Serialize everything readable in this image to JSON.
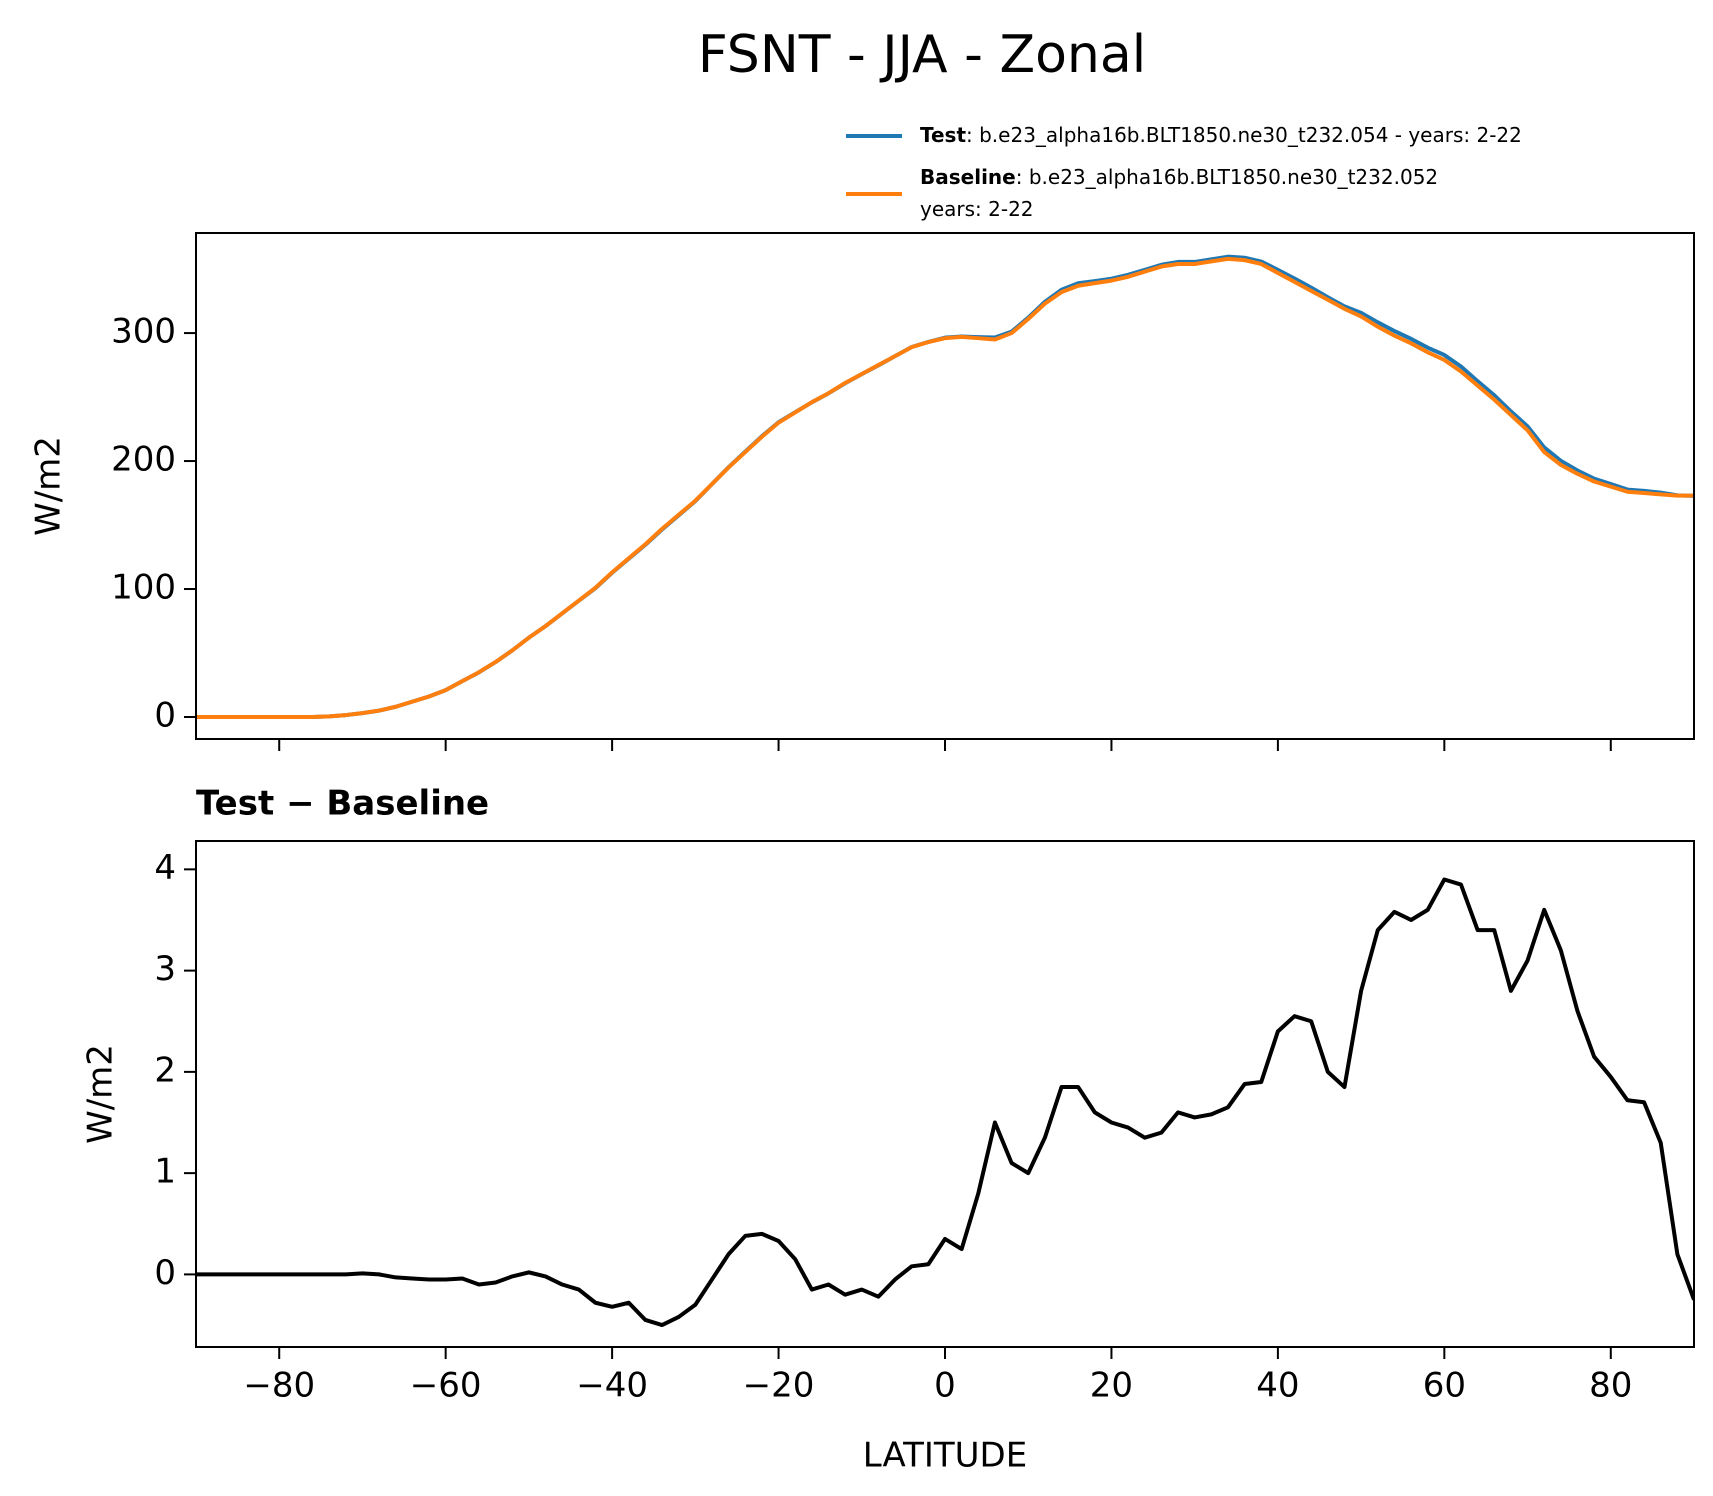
{
  "chart_data": [
    {
      "type": "line",
      "title": "FSNT - JJA - Zonal",
      "x": [
        -90,
        -88,
        -86,
        -84,
        -82,
        -80,
        -78,
        -76,
        -74,
        -72,
        -70,
        -68,
        -66,
        -64,
        -62,
        -60,
        -58,
        -56,
        -54,
        -52,
        -50,
        -48,
        -46,
        -44,
        -42,
        -40,
        -38,
        -36,
        -34,
        -32,
        -30,
        -28,
        -26,
        -24,
        -22,
        -20,
        -18,
        -16,
        -14,
        -12,
        -10,
        -8,
        -6,
        -4,
        -2,
        0,
        2,
        4,
        6,
        8,
        10,
        12,
        14,
        16,
        18,
        20,
        22,
        24,
        26,
        28,
        30,
        32,
        34,
        36,
        38,
        40,
        42,
        44,
        46,
        48,
        50,
        52,
        54,
        56,
        58,
        60,
        62,
        64,
        66,
        68,
        70,
        72,
        74,
        76,
        78,
        80,
        82,
        84,
        86,
        88,
        90
      ],
      "series": [
        {
          "name": "Test",
          "description": [
            ": b.e23_alpha16b.BLT1850.ne30_t232.054 - years: 2-22"
          ],
          "color": "#1f77b4",
          "values": [
            0,
            0,
            0,
            0,
            0,
            0,
            0,
            0,
            0.5,
            1.5,
            3.0,
            5.0,
            8.0,
            12.0,
            16.0,
            21.0,
            28.0,
            34.9,
            42.9,
            52.0,
            62.0,
            71.0,
            80.9,
            90.9,
            100.7,
            112.7,
            123.7,
            134.6,
            146.5,
            157.6,
            168.7,
            182.0,
            195.2,
            207.4,
            219.4,
            230.3,
            238.2,
            245.9,
            252.9,
            260.8,
            267.9,
            274.8,
            282.0,
            289.1,
            293.1,
            296.4,
            297.3,
            296.8,
            296.5,
            301.1,
            312.0,
            324.4,
            333.9,
            338.9,
            340.6,
            342.5,
            345.5,
            349.4,
            353.4,
            355.6,
            355.6,
            357.6,
            359.7,
            358.9,
            355.9,
            349.4,
            342.6,
            335.5,
            328.0,
            320.9,
            315.8,
            308.4,
            301.6,
            295.5,
            288.6,
            282.9,
            273.9,
            262.4,
            251.4,
            238.8,
            227.1,
            210.6,
            200.2,
            192.6,
            186.2,
            182.0,
            177.7,
            176.7,
            175.3,
            173.2,
            172.8
          ]
        },
        {
          "name": "Baseline",
          "description": [
            ": b.e23_alpha16b.BLT1850.ne30_t232.052",
            "years: 2-22"
          ],
          "color": "#ff7f0e",
          "values": [
            0,
            0,
            0,
            0,
            0,
            0,
            0,
            0,
            0.5,
            1.5,
            3,
            5,
            8,
            12,
            16,
            21,
            28,
            35,
            43,
            52,
            62,
            71,
            81,
            91,
            101,
            113,
            124,
            135,
            147,
            158,
            169,
            182,
            195,
            207,
            219,
            230,
            238,
            246,
            253,
            261,
            268,
            275,
            282,
            289,
            293,
            296,
            297,
            296,
            295,
            300,
            311,
            323,
            332,
            337,
            339,
            341,
            344,
            348,
            352,
            354,
            354,
            356,
            358,
            357,
            354,
            347,
            340,
            333,
            326,
            319,
            313,
            305,
            298,
            292,
            285,
            279,
            270,
            259,
            248,
            236,
            224,
            207,
            197,
            190,
            184,
            180,
            176,
            175,
            174,
            173,
            173
          ]
        }
      ],
      "ylabel": "W/m2",
      "xlim": [
        -90,
        90
      ],
      "ylim": [
        -17.2,
        378.2
      ],
      "yticks": [
        0,
        100,
        200,
        300
      ],
      "xticks": [
        -80,
        -60,
        -40,
        -20,
        0,
        20,
        40,
        60,
        80
      ]
    },
    {
      "type": "line",
      "title": "Test − Baseline",
      "x": [
        -90,
        -88,
        -86,
        -84,
        -82,
        -80,
        -78,
        -76,
        -74,
        -72,
        -70,
        -68,
        -66,
        -64,
        -62,
        -60,
        -58,
        -56,
        -54,
        -52,
        -50,
        -48,
        -46,
        -44,
        -42,
        -40,
        -38,
        -36,
        -34,
        -32,
        -30,
        -28,
        -26,
        -24,
        -22,
        -20,
        -18,
        -16,
        -14,
        -12,
        -10,
        -8,
        -6,
        -4,
        -2,
        0,
        2,
        4,
        6,
        8,
        10,
        12,
        14,
        16,
        18,
        20,
        22,
        24,
        26,
        28,
        30,
        32,
        34,
        36,
        38,
        40,
        42,
        44,
        46,
        48,
        50,
        52,
        54,
        56,
        58,
        60,
        62,
        64,
        66,
        68,
        70,
        72,
        74,
        76,
        78,
        80,
        82,
        84,
        86,
        88,
        90
      ],
      "series": [
        {
          "color": "#000000",
          "values": [
            0,
            0,
            0,
            0,
            0,
            0,
            0,
            0,
            0,
            0,
            0.01,
            0,
            -0.03,
            -0.04,
            -0.05,
            -0.05,
            -0.04,
            -0.1,
            -0.08,
            -0.02,
            0.02,
            -0.02,
            -0.1,
            -0.15,
            -0.28,
            -0.32,
            -0.28,
            -0.45,
            -0.5,
            -0.42,
            -0.3,
            -0.05,
            0.2,
            0.38,
            0.4,
            0.33,
            0.15,
            -0.15,
            -0.1,
            -0.2,
            -0.15,
            -0.22,
            -0.05,
            0.08,
            0.1,
            0.35,
            0.25,
            0.8,
            1.5,
            1.1,
            1.0,
            1.35,
            1.85,
            1.85,
            1.6,
            1.5,
            1.45,
            1.35,
            1.4,
            1.6,
            1.55,
            1.58,
            1.65,
            1.88,
            1.9,
            2.4,
            2.55,
            2.5,
            2.0,
            1.85,
            2.8,
            3.4,
            3.58,
            3.5,
            3.6,
            3.9,
            3.85,
            3.4,
            3.4,
            2.8,
            3.1,
            3.6,
            3.2,
            2.6,
            2.15,
            1.95,
            1.72,
            1.7,
            1.3,
            0.2,
            -0.25
          ]
        }
      ],
      "xlabel": "LATITUDE",
      "ylabel": "W/m2",
      "xlim": [
        -90,
        90
      ],
      "ylim": [
        -0.717,
        4.28
      ],
      "yticks": [
        0,
        1,
        2,
        3,
        4
      ],
      "xticks": [
        {
          "value": -80,
          "label": "−80"
        },
        {
          "value": -60,
          "label": "−60"
        },
        {
          "value": -40,
          "label": "−40"
        },
        {
          "value": -20,
          "label": "−20"
        },
        0,
        20,
        40,
        60,
        80
      ]
    }
  ]
}
